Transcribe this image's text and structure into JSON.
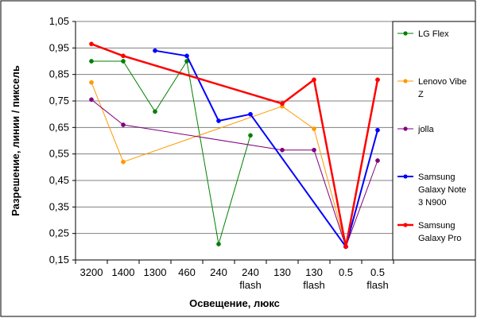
{
  "chart_data": {
    "type": "line",
    "title": "",
    "xlabel": "Освещение, люкс",
    "ylabel": "Разрешение, линии / пиксель",
    "ylim": [
      0.15,
      1.05
    ],
    "yticks": [
      "0,15",
      "0,25",
      "0,35",
      "0,45",
      "0,55",
      "0,65",
      "0,75",
      "0,85",
      "0,95",
      "1,05"
    ],
    "categories": [
      [
        "3200"
      ],
      [
        "1400"
      ],
      [
        "1300"
      ],
      [
        "460"
      ],
      [
        "240"
      ],
      [
        "240",
        "flash"
      ],
      [
        "130"
      ],
      [
        "130",
        "flash"
      ],
      [
        "0.5"
      ],
      [
        "0.5",
        "flash"
      ]
    ],
    "grid": "horizontal",
    "legend_position": "right",
    "series": [
      {
        "name": "LG Flex",
        "color": "#008000",
        "line_width": 1,
        "values": [
          0.9,
          0.9,
          0.71,
          0.9,
          0.21,
          0.62,
          null,
          null,
          null,
          null
        ]
      },
      {
        "name": "Lenovo Vibe Z",
        "color": "#FF9900",
        "line_width": 1,
        "values": [
          0.82,
          0.52,
          null,
          null,
          null,
          null,
          0.73,
          0.645,
          0.2,
          0.83
        ]
      },
      {
        "name": "jolla",
        "color": "#800080",
        "line_width": 1,
        "values": [
          0.755,
          0.66,
          null,
          null,
          null,
          null,
          0.565,
          0.565,
          0.2,
          0.525
        ]
      },
      {
        "name": "Samsung Galaxy Note 3 N900",
        "color": "#0000FF",
        "line_width": 2,
        "values": [
          null,
          null,
          0.94,
          0.92,
          0.675,
          0.7,
          null,
          null,
          0.2,
          0.64
        ]
      },
      {
        "name": "Samsung Galaxy Pro",
        "color": "#FF0000",
        "line_width": 2.5,
        "values": [
          0.965,
          0.92,
          null,
          null,
          null,
          null,
          0.74,
          0.83,
          0.2,
          0.83
        ]
      }
    ]
  }
}
